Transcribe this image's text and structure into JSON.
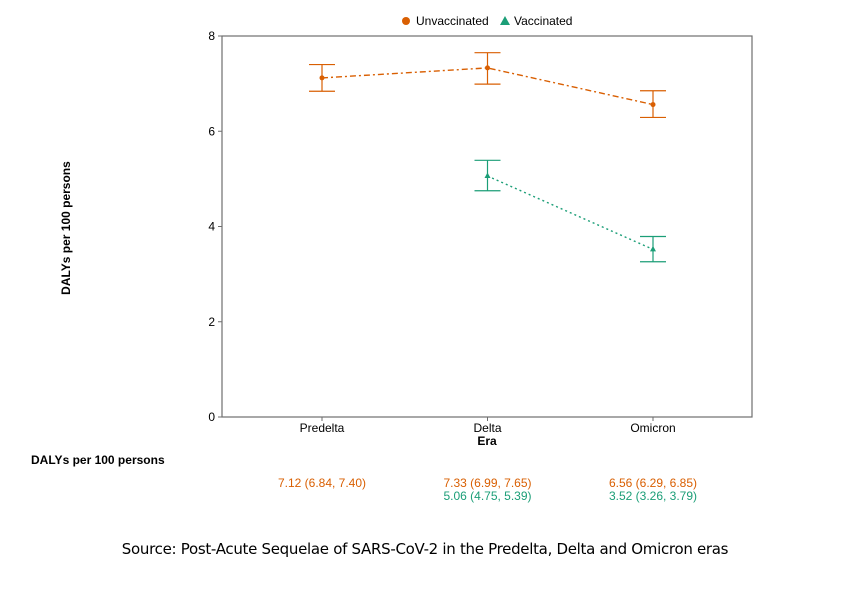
{
  "chart_data": {
    "type": "line",
    "title": "",
    "xlabel": "Era",
    "ylabel": "DALYs per 100 persons",
    "categories": [
      "Predelta",
      "Delta",
      "Omicron"
    ],
    "ylim": [
      0,
      8
    ],
    "yticks": [
      0,
      2,
      4,
      6,
      8
    ],
    "grid": false,
    "legend_position": "top",
    "series": [
      {
        "name": "Unvaccinated",
        "marker": "circle",
        "line_style": "dash-dot",
        "color": "#D95F02",
        "values": [
          7.12,
          7.33,
          6.56
        ],
        "ci_low": [
          6.84,
          6.99,
          6.29
        ],
        "ci_high": [
          7.4,
          7.65,
          6.85
        ],
        "x_index": [
          0,
          1,
          2
        ]
      },
      {
        "name": "Vaccinated",
        "marker": "triangle",
        "line_style": "dotted",
        "color": "#1B9E77",
        "values": [
          5.06,
          3.52
        ],
        "ci_low": [
          4.75,
          3.26
        ],
        "ci_high": [
          5.39,
          3.79
        ],
        "x_index": [
          1,
          2
        ]
      }
    ]
  },
  "legend": {
    "items": [
      {
        "label": "Unvaccinated"
      },
      {
        "label": "Vaccinated"
      }
    ]
  },
  "table": {
    "title": "DALYs per 100 persons",
    "rows": [
      {
        "series": "Unvaccinated",
        "color": "#D95F02",
        "cells": [
          "7.12 (6.84, 7.40)",
          "7.33 (6.99, 7.65)",
          "6.56 (6.29, 6.85)"
        ]
      },
      {
        "series": "Vaccinated",
        "color": "#1B9E77",
        "cells": [
          "",
          "5.06 (4.75, 5.39)",
          "3.52 (3.26, 3.79)"
        ]
      }
    ]
  },
  "source": "Source: Post-Acute Sequelae of SARS-CoV-2 in the Predelta, Delta and Omicron eras"
}
